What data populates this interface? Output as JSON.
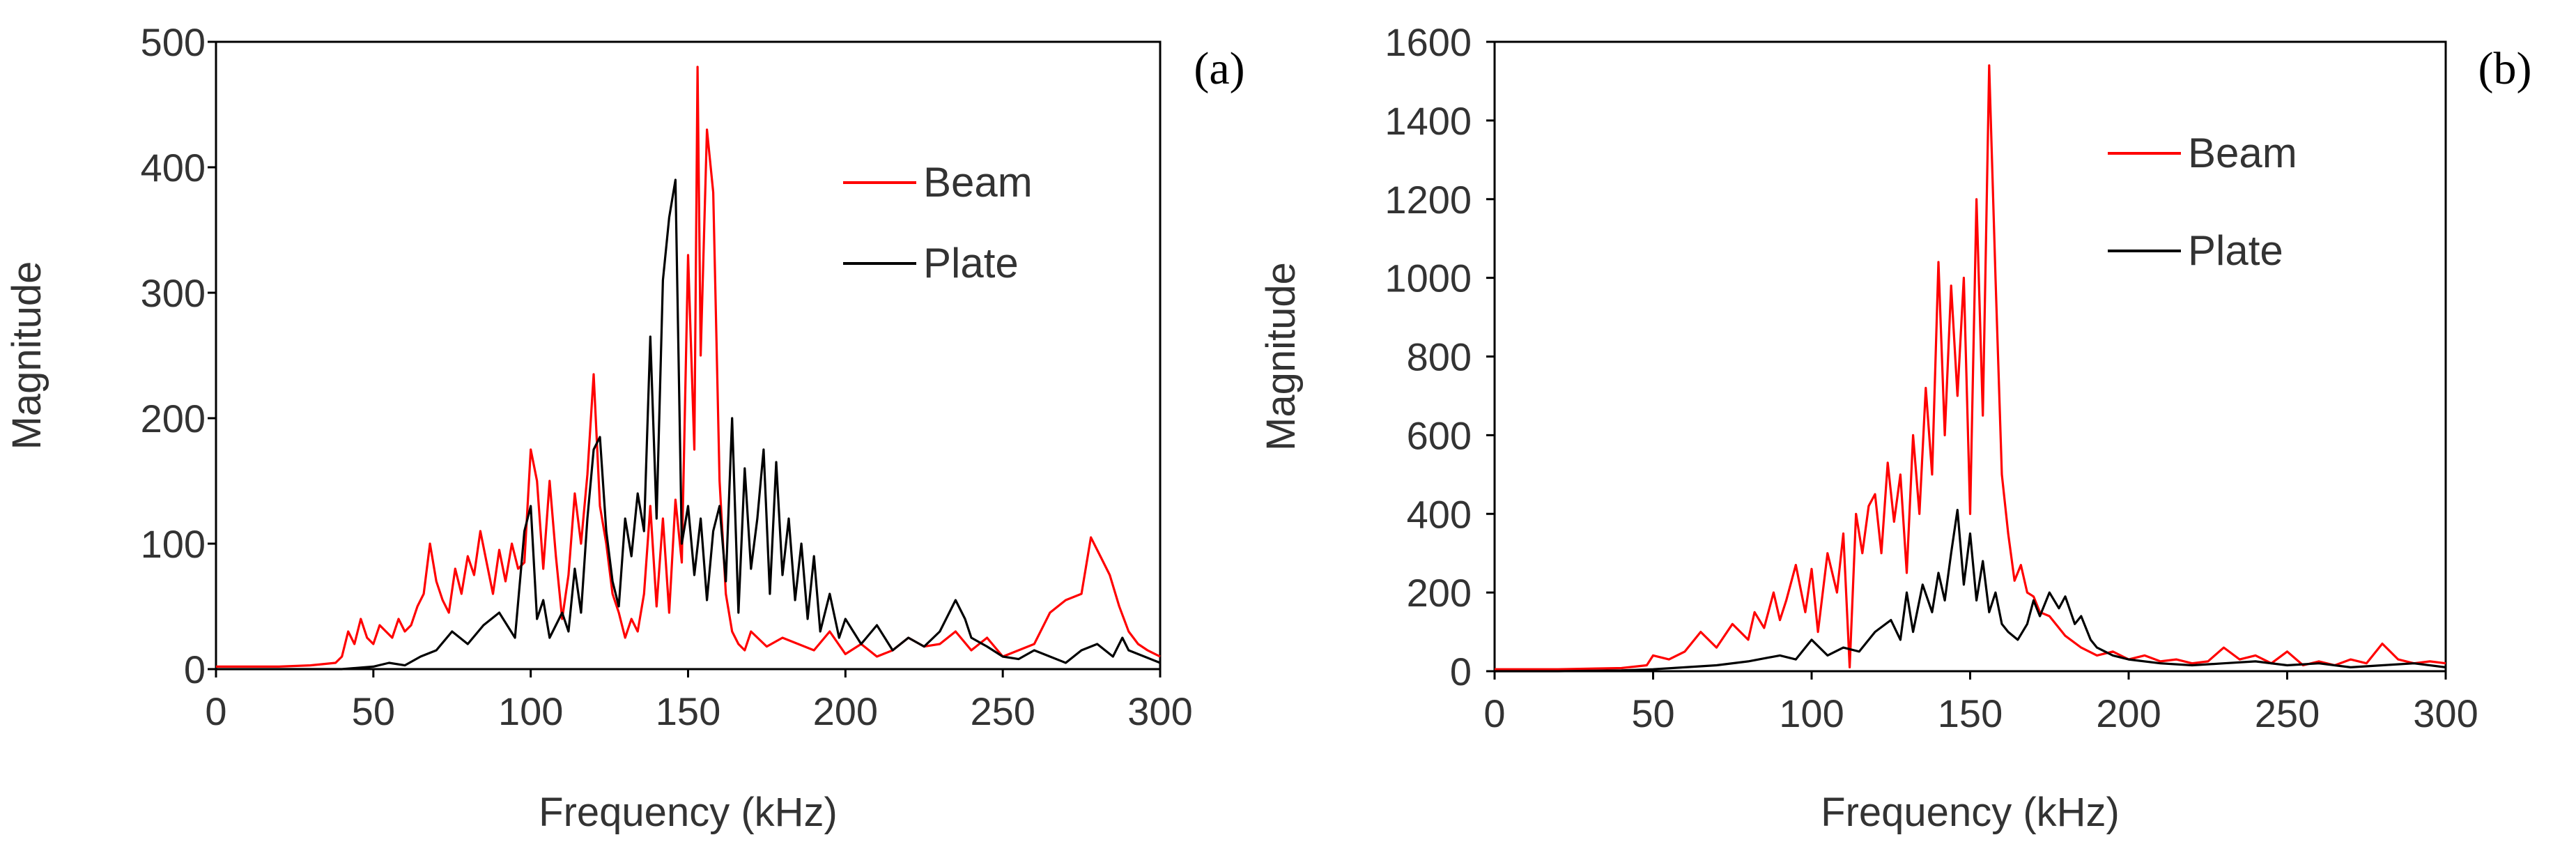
{
  "chart_data": [
    {
      "type": "line",
      "panel_label": "(a)",
      "xlabel": "Frequency (kHz)",
      "ylabel": "Magnitude",
      "xlim": [
        0,
        300
      ],
      "ylim": [
        0,
        500
      ],
      "xticks": [
        0,
        50,
        100,
        150,
        200,
        250,
        300
      ],
      "yticks": [
        0,
        100,
        200,
        300,
        400,
        500
      ],
      "legend_position": "top-right",
      "series": [
        {
          "name": "Beam",
          "color": "#ff0000",
          "x": [
            0,
            10,
            20,
            30,
            38,
            40,
            42,
            44,
            46,
            48,
            50,
            52,
            54,
            56,
            58,
            60,
            62,
            64,
            66,
            68,
            70,
            72,
            74,
            76,
            78,
            80,
            82,
            84,
            86,
            88,
            90,
            92,
            94,
            96,
            98,
            100,
            102,
            104,
            106,
            108,
            110,
            112,
            114,
            116,
            118,
            120,
            122,
            124,
            126,
            128,
            130,
            132,
            134,
            136,
            138,
            140,
            142,
            144,
            146,
            148,
            150,
            152,
            153,
            154,
            156,
            158,
            160,
            162,
            164,
            166,
            168,
            170,
            175,
            180,
            185,
            190,
            195,
            200,
            205,
            210,
            215,
            220,
            225,
            230,
            235,
            240,
            245,
            250,
            255,
            260,
            265,
            270,
            275,
            278,
            281,
            284,
            287,
            290,
            293,
            296,
            300
          ],
          "y": [
            2,
            2,
            2,
            3,
            5,
            10,
            30,
            20,
            40,
            25,
            20,
            35,
            30,
            25,
            40,
            30,
            35,
            50,
            60,
            100,
            70,
            55,
            45,
            80,
            60,
            90,
            75,
            110,
            85,
            60,
            95,
            70,
            100,
            80,
            85,
            175,
            150,
            80,
            150,
            90,
            40,
            75,
            140,
            100,
            155,
            235,
            130,
            100,
            60,
            45,
            25,
            40,
            30,
            60,
            130,
            50,
            120,
            45,
            135,
            85,
            330,
            175,
            480,
            250,
            430,
            380,
            150,
            60,
            30,
            20,
            15,
            30,
            18,
            25,
            20,
            15,
            30,
            12,
            20,
            10,
            15,
            25,
            18,
            20,
            30,
            15,
            25,
            10,
            15,
            20,
            45,
            55,
            60,
            105,
            90,
            75,
            50,
            30,
            20,
            15,
            10
          ]
        },
        {
          "name": "Plate",
          "color": "#000000",
          "x": [
            0,
            20,
            40,
            50,
            55,
            60,
            65,
            70,
            75,
            80,
            85,
            90,
            95,
            98,
            100,
            102,
            104,
            106,
            108,
            110,
            112,
            114,
            116,
            118,
            120,
            122,
            124,
            126,
            128,
            130,
            132,
            134,
            136,
            138,
            140,
            142,
            144,
            146,
            148,
            150,
            152,
            154,
            156,
            158,
            160,
            162,
            164,
            166,
            168,
            170,
            172,
            174,
            176,
            178,
            180,
            182,
            184,
            186,
            188,
            190,
            192,
            195,
            198,
            200,
            205,
            210,
            215,
            220,
            225,
            230,
            235,
            238,
            240,
            245,
            250,
            255,
            260,
            265,
            270,
            275,
            280,
            285,
            288,
            290,
            295,
            300
          ],
          "y": [
            0,
            0,
            0,
            2,
            5,
            3,
            10,
            15,
            30,
            20,
            35,
            45,
            25,
            110,
            130,
            40,
            55,
            25,
            35,
            45,
            30,
            80,
            45,
            120,
            175,
            185,
            110,
            70,
            50,
            120,
            90,
            140,
            110,
            265,
            120,
            310,
            360,
            390,
            100,
            130,
            75,
            120,
            55,
            110,
            130,
            70,
            200,
            45,
            160,
            80,
            120,
            175,
            60,
            165,
            75,
            120,
            55,
            100,
            40,
            90,
            30,
            60,
            25,
            40,
            20,
            35,
            15,
            25,
            18,
            30,
            55,
            40,
            25,
            18,
            10,
            8,
            15,
            10,
            5,
            15,
            20,
            10,
            25,
            15,
            10,
            5
          ]
        }
      ]
    },
    {
      "type": "line",
      "panel_label": "(b)",
      "xlabel": "Frequency (kHz)",
      "ylabel": "Magnitude",
      "xlim": [
        0,
        300
      ],
      "ylim": [
        0,
        1600
      ],
      "xticks": [
        0,
        50,
        100,
        150,
        200,
        250,
        300
      ],
      "yticks": [
        0,
        200,
        400,
        600,
        800,
        1000,
        1200,
        1400,
        1600
      ],
      "legend_position": "top-right",
      "series": [
        {
          "name": "Beam",
          "color": "#ff0000",
          "x": [
            0,
            20,
            40,
            48,
            50,
            55,
            60,
            65,
            70,
            75,
            80,
            82,
            85,
            88,
            90,
            92,
            95,
            98,
            100,
            102,
            105,
            108,
            110,
            112,
            114,
            116,
            118,
            120,
            122,
            124,
            126,
            128,
            130,
            132,
            134,
            136,
            138,
            140,
            142,
            144,
            146,
            148,
            150,
            152,
            154,
            156,
            158,
            160,
            162,
            164,
            166,
            168,
            170,
            172,
            175,
            178,
            180,
            185,
            190,
            195,
            200,
            205,
            210,
            215,
            220,
            225,
            230,
            235,
            240,
            245,
            250,
            255,
            260,
            265,
            270,
            275,
            280,
            285,
            290,
            295,
            300
          ],
          "y": [
            5,
            5,
            8,
            15,
            40,
            30,
            50,
            100,
            60,
            120,
            80,
            150,
            110,
            200,
            130,
            180,
            270,
            150,
            260,
            100,
            300,
            200,
            350,
            10,
            400,
            300,
            420,
            450,
            300,
            530,
            380,
            500,
            250,
            600,
            400,
            720,
            500,
            1040,
            600,
            980,
            700,
            1000,
            400,
            1200,
            650,
            1540,
            1000,
            500,
            350,
            230,
            270,
            200,
            190,
            150,
            140,
            110,
            90,
            60,
            40,
            50,
            30,
            40,
            25,
            30,
            20,
            25,
            60,
            30,
            40,
            20,
            50,
            15,
            25,
            15,
            30,
            20,
            70,
            30,
            20,
            25,
            20
          ]
        },
        {
          "name": "Plate",
          "color": "#000000",
          "x": [
            0,
            20,
            40,
            50,
            60,
            70,
            80,
            90,
            95,
            100,
            105,
            110,
            115,
            120,
            125,
            128,
            130,
            132,
            135,
            138,
            140,
            142,
            144,
            146,
            148,
            150,
            152,
            154,
            156,
            158,
            160,
            162,
            165,
            168,
            170,
            172,
            175,
            178,
            180,
            183,
            185,
            188,
            190,
            195,
            200,
            210,
            220,
            230,
            240,
            250,
            260,
            270,
            280,
            290,
            300
          ],
          "y": [
            0,
            0,
            2,
            5,
            10,
            15,
            25,
            40,
            30,
            80,
            40,
            60,
            50,
            100,
            130,
            80,
            200,
            100,
            220,
            150,
            250,
            180,
            300,
            410,
            220,
            350,
            180,
            280,
            150,
            200,
            120,
            100,
            80,
            120,
            180,
            140,
            200,
            160,
            190,
            120,
            140,
            80,
            60,
            40,
            30,
            20,
            15,
            20,
            25,
            15,
            20,
            10,
            15,
            20,
            10
          ]
        }
      ]
    }
  ]
}
